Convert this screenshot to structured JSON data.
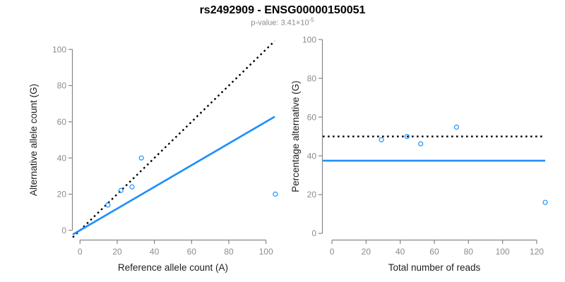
{
  "figure": {
    "title": "rs2492909 - ENSG00000150051",
    "subtitle": {
      "prefix": "p-value: 3.41×10",
      "exponent": "-5"
    }
  },
  "colors": {
    "accent_blue": "#1E90FF",
    "dotted_black": "#000000",
    "axis_gray": "#878787",
    "tick_label_gray": "#8c8c8c",
    "axis_title_dark": "#1f1f1f",
    "subtitle_gray": "#8c8c8c"
  },
  "chart_data": [
    {
      "type": "scatter",
      "title": "",
      "xlabel": "Reference allele count (A)",
      "ylabel": "Alternative allele count (G)",
      "xticks": [
        0,
        20,
        40,
        60,
        80,
        100
      ],
      "yticks": [
        0,
        20,
        40,
        60,
        80,
        100
      ],
      "xlim": [
        -3.9,
        104.7
      ],
      "ylim": [
        -4.8,
        105.9
      ],
      "grid": false,
      "legend": false,
      "points": [
        [
          15,
          14
        ],
        [
          22,
          22
        ],
        [
          28,
          24
        ],
        [
          33,
          40
        ],
        [
          105,
          20
        ]
      ],
      "lines": [
        {
          "name": "identity-line",
          "style": "dotted",
          "color": "#000000",
          "x1": -3.9,
          "y1": -3.9,
          "x2": 104.7,
          "y2": 104.7
        },
        {
          "name": "fit-line",
          "style": "solid",
          "color": "#1E90FF",
          "x1": -3.9,
          "y1": -2.34,
          "x2": 104.7,
          "y2": 62.82
        }
      ]
    },
    {
      "type": "scatter",
      "title": "",
      "xlabel": "Total number of reads",
      "ylabel": "Percentage alternative (G)",
      "xticks": [
        0,
        20,
        40,
        60,
        80,
        100,
        120
      ],
      "yticks": [
        0,
        20,
        40,
        60,
        80,
        100
      ],
      "xlim": [
        -5.4,
        125.0
      ],
      "ylim": [
        -2.9,
        100.4
      ],
      "grid": false,
      "legend": false,
      "points": [
        [
          29,
          48.3
        ],
        [
          44,
          50
        ],
        [
          52,
          46.2
        ],
        [
          73,
          54.8
        ],
        [
          125,
          16
        ]
      ],
      "lines": [
        {
          "name": "fifty-percent-line",
          "style": "dotted",
          "color": "#000000",
          "x1": -5.4,
          "y1": 50,
          "x2": 125.0,
          "y2": 50
        },
        {
          "name": "fit-line",
          "style": "solid",
          "color": "#1E90FF",
          "x1": -5.4,
          "y1": 37.5,
          "x2": 125.0,
          "y2": 37.5
        }
      ]
    }
  ]
}
